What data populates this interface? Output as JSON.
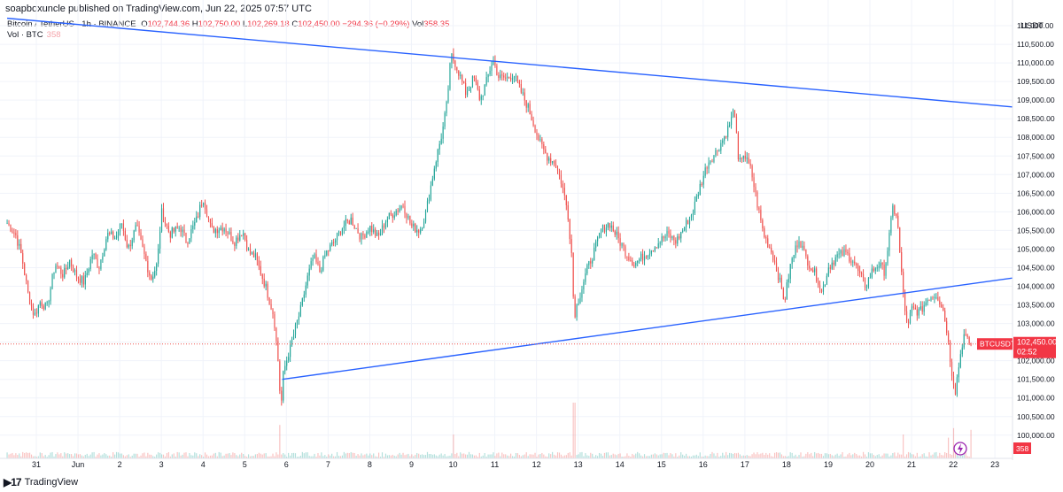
{
  "header": {
    "published": "soapboxuncle published on TradingView.com, Jun 22, 2025 07:57 UTC"
  },
  "legend": {
    "symbol": "Bitcoin / TetherUS · 1h · BINANCE",
    "open_label": "O",
    "open": "102,744.36",
    "high_label": "H",
    "high": "102,750.00",
    "low_label": "L",
    "low": "102,269.18",
    "close_label": "C",
    "close": "102,450.00",
    "change": "−294.36 (−0.29%)",
    "vol_label": "Vol",
    "vol": "358.35"
  },
  "volume_legend": {
    "label": "Vol · BTC",
    "value": "358"
  },
  "price_axis": {
    "currency": "USDT",
    "ticker_tag": "BTCUSDT",
    "last_price": "102,450.00",
    "countdown": "02:52",
    "volume_tag": "358",
    "up_color": "#26a69a",
    "down_color": "#ef5350",
    "line_color": "#2962ff"
  },
  "footer": {
    "brand": "TradingView"
  },
  "chart_data": {
    "type": "candlestick",
    "title": "Bitcoin / TetherUS · 1h · BINANCE",
    "ylim": [
      99900,
      111500
    ],
    "y_ticks": [
      100000,
      100500,
      101000,
      101500,
      102000,
      102500,
      103000,
      103500,
      104000,
      104500,
      105000,
      105500,
      106000,
      106500,
      107000,
      107500,
      108000,
      108500,
      109000,
      109500,
      110000,
      110500,
      111000
    ],
    "y_tick_labels": [
      "100,000.00",
      "100,500.00",
      "101,000.00",
      "101,500.00",
      "102,000.00",
      "102,500.00",
      "103,000.00",
      "103,500.00",
      "104,000.00",
      "104,500.00",
      "105,000.00",
      "105,500.00",
      "106,000.00",
      "106,500.00",
      "107,000.00",
      "107,500.00",
      "108,000.00",
      "108,500.00",
      "109,000.00",
      "109,500.00",
      "110,000.00",
      "110,500.00",
      "111,000.00"
    ],
    "x_labels": [
      "31",
      "Jun",
      "2",
      "3",
      "4",
      "5",
      "6",
      "7",
      "8",
      "9",
      "10",
      "11",
      "12",
      "13",
      "14",
      "15",
      "16",
      "17",
      "18",
      "19",
      "20",
      "21",
      "22",
      "23"
    ],
    "x_label_day_offsets": [
      0,
      1,
      2,
      3,
      4,
      5,
      6,
      7,
      8,
      9,
      10,
      11,
      12,
      13,
      14,
      15,
      16,
      17,
      18,
      19,
      20,
      21,
      22,
      23
    ],
    "price_path": [
      [
        -0.7,
        105700
      ],
      [
        -0.5,
        105400
      ],
      [
        -0.35,
        104800
      ],
      [
        -0.2,
        103800
      ],
      [
        -0.05,
        103200
      ],
      [
        0.1,
        103600
      ],
      [
        0.25,
        103400
      ],
      [
        0.45,
        104600
      ],
      [
        0.65,
        104300
      ],
      [
        0.8,
        104700
      ],
      [
        0.95,
        104300
      ],
      [
        1.15,
        104100
      ],
      [
        1.35,
        104900
      ],
      [
        1.5,
        104500
      ],
      [
        1.7,
        105400
      ],
      [
        1.9,
        105300
      ],
      [
        2.05,
        105700
      ],
      [
        2.2,
        105000
      ],
      [
        2.4,
        105600
      ],
      [
        2.6,
        104800
      ],
      [
        2.75,
        104200
      ],
      [
        2.9,
        104600
      ],
      [
        3.0,
        106000
      ],
      [
        3.2,
        105400
      ],
      [
        3.45,
        105600
      ],
      [
        3.6,
        105200
      ],
      [
        3.85,
        105800
      ],
      [
        4.0,
        106400
      ],
      [
        4.2,
        105500
      ],
      [
        4.5,
        105600
      ],
      [
        4.75,
        105200
      ],
      [
        4.95,
        105500
      ],
      [
        5.1,
        104900
      ],
      [
        5.25,
        104800
      ],
      [
        5.5,
        104000
      ],
      [
        5.7,
        103200
      ],
      [
        5.8,
        102000
      ],
      [
        5.87,
        100700
      ],
      [
        5.93,
        101700
      ],
      [
        6.05,
        102200
      ],
      [
        6.2,
        102800
      ],
      [
        6.35,
        103400
      ],
      [
        6.5,
        104200
      ],
      [
        6.65,
        104800
      ],
      [
        6.8,
        104400
      ],
      [
        6.95,
        104900
      ],
      [
        7.15,
        105200
      ],
      [
        7.35,
        105600
      ],
      [
        7.55,
        105800
      ],
      [
        7.8,
        105300
      ],
      [
        8.0,
        105600
      ],
      [
        8.2,
        105300
      ],
      [
        8.4,
        105800
      ],
      [
        8.6,
        106000
      ],
      [
        8.8,
        106200
      ],
      [
        9.0,
        105600
      ],
      [
        9.2,
        105500
      ],
      [
        9.35,
        106000
      ],
      [
        9.55,
        107200
      ],
      [
        9.75,
        108200
      ],
      [
        9.85,
        108900
      ],
      [
        9.95,
        110200
      ],
      [
        10.05,
        110000
      ],
      [
        10.15,
        109700
      ],
      [
        10.3,
        109200
      ],
      [
        10.5,
        109600
      ],
      [
        10.65,
        109000
      ],
      [
        10.8,
        109500
      ],
      [
        10.95,
        110100
      ],
      [
        11.1,
        109600
      ],
      [
        11.3,
        109600
      ],
      [
        11.45,
        109700
      ],
      [
        11.6,
        109300
      ],
      [
        11.8,
        108800
      ],
      [
        11.95,
        108300
      ],
      [
        12.1,
        107800
      ],
      [
        12.25,
        107500
      ],
      [
        12.45,
        107300
      ],
      [
        12.6,
        106800
      ],
      [
        12.75,
        106000
      ],
      [
        12.85,
        104800
      ],
      [
        12.9,
        103200
      ],
      [
        13.05,
        103800
      ],
      [
        13.2,
        104400
      ],
      [
        13.4,
        105000
      ],
      [
        13.55,
        105500
      ],
      [
        13.75,
        105700
      ],
      [
        13.95,
        105300
      ],
      [
        14.15,
        104900
      ],
      [
        14.35,
        104600
      ],
      [
        14.55,
        104800
      ],
      [
        14.75,
        105000
      ],
      [
        14.95,
        105200
      ],
      [
        15.15,
        105400
      ],
      [
        15.35,
        105200
      ],
      [
        15.55,
        105600
      ],
      [
        15.75,
        106000
      ],
      [
        15.9,
        106600
      ],
      [
        16.1,
        107300
      ],
      [
        16.3,
        107600
      ],
      [
        16.5,
        108000
      ],
      [
        16.65,
        108400
      ],
      [
        16.75,
        108800
      ],
      [
        16.85,
        107200
      ],
      [
        16.95,
        107600
      ],
      [
        17.15,
        107100
      ],
      [
        17.3,
        106200
      ],
      [
        17.45,
        105400
      ],
      [
        17.65,
        104900
      ],
      [
        17.8,
        104300
      ],
      [
        17.95,
        103600
      ],
      [
        18.1,
        104600
      ],
      [
        18.3,
        105300
      ],
      [
        18.45,
        104800
      ],
      [
        18.6,
        104500
      ],
      [
        18.75,
        104200
      ],
      [
        18.85,
        103800
      ],
      [
        19.0,
        104500
      ],
      [
        19.2,
        104800
      ],
      [
        19.4,
        104900
      ],
      [
        19.6,
        104700
      ],
      [
        19.75,
        104300
      ],
      [
        19.9,
        104000
      ],
      [
        20.05,
        104400
      ],
      [
        20.2,
        104600
      ],
      [
        20.35,
        104400
      ],
      [
        20.45,
        105200
      ],
      [
        20.55,
        106100
      ],
      [
        20.65,
        105900
      ],
      [
        20.75,
        104400
      ],
      [
        20.82,
        103600
      ],
      [
        20.9,
        102800
      ],
      [
        21.0,
        103400
      ],
      [
        21.2,
        103300
      ],
      [
        21.4,
        103700
      ],
      [
        21.6,
        103800
      ],
      [
        21.75,
        103400
      ],
      [
        21.85,
        102800
      ],
      [
        21.95,
        101800
      ],
      [
        22.05,
        101200
      ],
      [
        22.15,
        102000
      ],
      [
        22.25,
        102700
      ],
      [
        22.35,
        102500
      ],
      [
        22.45,
        102450
      ]
    ],
    "trend_lines": [
      {
        "from": [
          -0.7,
          111200
        ],
        "to": [
          23.6,
          108800
        ]
      },
      {
        "from": [
          5.9,
          101500
        ],
        "to": [
          23.6,
          104250
        ]
      }
    ],
    "volume_spikes": [
      [
        5.85,
        420
      ],
      [
        10.0,
        300
      ],
      [
        12.9,
        700
      ],
      [
        20.8,
        300
      ],
      [
        21.9,
        260
      ],
      [
        22.0,
        380
      ]
    ],
    "last_price_value": 102450,
    "last_volume": 358
  }
}
